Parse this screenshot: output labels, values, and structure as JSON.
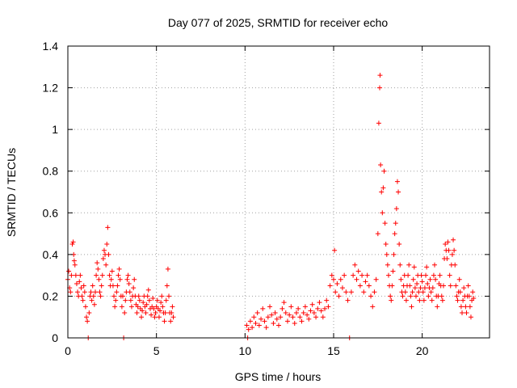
{
  "chart_data": {
    "type": "scatter",
    "title": "Day 077 of 2025, SRMTID for receiver echo",
    "xlabel": "GPS time / hours",
    "ylabel": "SRMTID / TECUs",
    "xlim": [
      0,
      23.8
    ],
    "ylim": [
      0,
      1.4
    ],
    "x_ticks": [
      0,
      5,
      10,
      15,
      20
    ],
    "y_ticks": [
      0,
      0.2,
      0.4,
      0.6,
      0.8,
      1,
      1.2,
      1.4
    ],
    "x_tick_labels": [
      "0",
      "5",
      "10",
      "15",
      "20"
    ],
    "y_tick_labels": [
      "0",
      "0.2",
      "0.4",
      "0.6",
      "0.8",
      "1",
      "1.2",
      "1.4"
    ],
    "grid": true,
    "marker": "+",
    "color": "#ff0000",
    "series": [
      {
        "name": "receiver echo",
        "points": [
          [
            0.0,
            0.28
          ],
          [
            0.05,
            0.32
          ],
          [
            0.1,
            0.24
          ],
          [
            0.15,
            0.22
          ],
          [
            0.2,
            0.3
          ],
          [
            0.25,
            0.45
          ],
          [
            0.3,
            0.46
          ],
          [
            0.33,
            0.4
          ],
          [
            0.36,
            0.37
          ],
          [
            0.4,
            0.35
          ],
          [
            0.45,
            0.3
          ],
          [
            0.5,
            0.26
          ],
          [
            0.55,
            0.22
          ],
          [
            0.6,
            0.2
          ],
          [
            0.65,
            0.27
          ],
          [
            0.7,
            0.3
          ],
          [
            0.75,
            0.24
          ],
          [
            0.8,
            0.2
          ],
          [
            0.85,
            0.18
          ],
          [
            0.9,
            0.25
          ],
          [
            0.95,
            0.22
          ],
          [
            1.0,
            0.15
          ],
          [
            1.05,
            0.1
          ],
          [
            1.1,
            0.08
          ],
          [
            1.15,
            0.0
          ],
          [
            1.2,
            0.12
          ],
          [
            1.25,
            0.2
          ],
          [
            1.3,
            0.22
          ],
          [
            1.35,
            0.18
          ],
          [
            1.4,
            0.25
          ],
          [
            1.45,
            0.2
          ],
          [
            1.5,
            0.16
          ],
          [
            1.55,
            0.22
          ],
          [
            1.6,
            0.3
          ],
          [
            1.65,
            0.36
          ],
          [
            1.7,
            0.33
          ],
          [
            1.75,
            0.28
          ],
          [
            1.8,
            0.22
          ],
          [
            1.85,
            0.2
          ],
          [
            1.9,
            0.25
          ],
          [
            1.95,
            0.3
          ],
          [
            2.0,
            0.38
          ],
          [
            2.05,
            0.42
          ],
          [
            2.1,
            0.4
          ],
          [
            2.15,
            0.35
          ],
          [
            2.2,
            0.45
          ],
          [
            2.25,
            0.53
          ],
          [
            2.3,
            0.4
          ],
          [
            2.35,
            0.3
          ],
          [
            2.4,
            0.25
          ],
          [
            2.45,
            0.28
          ],
          [
            2.5,
            0.32
          ],
          [
            2.55,
            0.25
          ],
          [
            2.6,
            0.2
          ],
          [
            2.65,
            0.15
          ],
          [
            2.7,
            0.18
          ],
          [
            2.75,
            0.22
          ],
          [
            2.8,
            0.25
          ],
          [
            2.85,
            0.3
          ],
          [
            2.9,
            0.33
          ],
          [
            2.95,
            0.28
          ],
          [
            3.0,
            0.2
          ],
          [
            3.05,
            0.15
          ],
          [
            3.1,
            0.2
          ],
          [
            3.15,
            0.0
          ],
          [
            3.2,
            0.12
          ],
          [
            3.25,
            0.18
          ],
          [
            3.3,
            0.22
          ],
          [
            3.35,
            0.28
          ],
          [
            3.4,
            0.3
          ],
          [
            3.45,
            0.26
          ],
          [
            3.5,
            0.22
          ],
          [
            3.55,
            0.18
          ],
          [
            3.6,
            0.15
          ],
          [
            3.65,
            0.2
          ],
          [
            3.7,
            0.24
          ],
          [
            3.75,
            0.28
          ],
          [
            3.8,
            0.2
          ],
          [
            3.85,
            0.16
          ],
          [
            3.9,
            0.12
          ],
          [
            3.95,
            0.15
          ],
          [
            4.0,
            0.2
          ],
          [
            4.05,
            0.18
          ],
          [
            4.1,
            0.14
          ],
          [
            4.15,
            0.1
          ],
          [
            4.2,
            0.13
          ],
          [
            4.25,
            0.17
          ],
          [
            4.3,
            0.2
          ],
          [
            4.35,
            0.15
          ],
          [
            4.4,
            0.12
          ],
          [
            4.45,
            0.16
          ],
          [
            4.5,
            0.2
          ],
          [
            4.55,
            0.23
          ],
          [
            4.6,
            0.18
          ],
          [
            4.65,
            0.14
          ],
          [
            4.7,
            0.11
          ],
          [
            4.75,
            0.15
          ],
          [
            4.8,
            0.19
          ],
          [
            4.85,
            0.14
          ],
          [
            4.9,
            0.1
          ],
          [
            4.95,
            0.12
          ],
          [
            5.0,
            0.15
          ],
          [
            5.05,
            0.18
          ],
          [
            5.1,
            0.14
          ],
          [
            5.15,
            0.1
          ],
          [
            5.2,
            0.13
          ],
          [
            5.25,
            0.17
          ],
          [
            5.3,
            0.2
          ],
          [
            5.35,
            0.15
          ],
          [
            5.4,
            0.12
          ],
          [
            5.45,
            0.08
          ],
          [
            5.5,
            0.12
          ],
          [
            5.55,
            0.18
          ],
          [
            5.6,
            0.25
          ],
          [
            5.65,
            0.33
          ],
          [
            5.7,
            0.2
          ],
          [
            5.75,
            0.12
          ],
          [
            5.8,
            0.08
          ],
          [
            5.85,
            0.12
          ],
          [
            5.9,
            0.15
          ],
          [
            5.95,
            0.1
          ],
          [
            10.1,
            0.06
          ],
          [
            10.15,
            0.0
          ],
          [
            10.2,
            0.04
          ],
          [
            10.3,
            0.08
          ],
          [
            10.4,
            0.05
          ],
          [
            10.5,
            0.1
          ],
          [
            10.6,
            0.07
          ],
          [
            10.7,
            0.12
          ],
          [
            10.8,
            0.06
          ],
          [
            10.9,
            0.09
          ],
          [
            11.0,
            0.14
          ],
          [
            11.1,
            0.08
          ],
          [
            11.2,
            0.05
          ],
          [
            11.3,
            0.1
          ],
          [
            11.4,
            0.15
          ],
          [
            11.5,
            0.11
          ],
          [
            11.6,
            0.07
          ],
          [
            11.7,
            0.12
          ],
          [
            11.8,
            0.09
          ],
          [
            11.9,
            0.06
          ],
          [
            12.0,
            0.1
          ],
          [
            12.1,
            0.14
          ],
          [
            12.2,
            0.17
          ],
          [
            12.3,
            0.12
          ],
          [
            12.4,
            0.08
          ],
          [
            12.5,
            0.11
          ],
          [
            12.6,
            0.15
          ],
          [
            12.7,
            0.1
          ],
          [
            12.8,
            0.07
          ],
          [
            12.9,
            0.12
          ],
          [
            13.0,
            0.14
          ],
          [
            13.1,
            0.1
          ],
          [
            13.2,
            0.08
          ],
          [
            13.3,
            0.12
          ],
          [
            13.4,
            0.15
          ],
          [
            13.5,
            0.11
          ],
          [
            13.6,
            0.09
          ],
          [
            13.7,
            0.13
          ],
          [
            13.8,
            0.16
          ],
          [
            13.9,
            0.12
          ],
          [
            14.0,
            0.1
          ],
          [
            14.1,
            0.14
          ],
          [
            14.2,
            0.17
          ],
          [
            14.3,
            0.13
          ],
          [
            14.4,
            0.1
          ],
          [
            14.5,
            0.14
          ],
          [
            14.6,
            0.18
          ],
          [
            14.7,
            0.15
          ],
          [
            14.8,
            0.25
          ],
          [
            14.9,
            0.3
          ],
          [
            15.0,
            0.28
          ],
          [
            15.05,
            0.42
          ],
          [
            15.1,
            0.22
          ],
          [
            15.2,
            0.26
          ],
          [
            15.3,
            0.2
          ],
          [
            15.4,
            0.28
          ],
          [
            15.5,
            0.24
          ],
          [
            15.6,
            0.3
          ],
          [
            15.7,
            0.22
          ],
          [
            15.8,
            0.18
          ],
          [
            15.9,
            0.0
          ],
          [
            16.0,
            0.22
          ],
          [
            16.1,
            0.3
          ],
          [
            16.2,
            0.35
          ],
          [
            16.3,
            0.28
          ],
          [
            16.4,
            0.32
          ],
          [
            16.5,
            0.25
          ],
          [
            16.6,
            0.3
          ],
          [
            16.7,
            0.22
          ],
          [
            16.8,
            0.27
          ],
          [
            16.9,
            0.3
          ],
          [
            17.0,
            0.25
          ],
          [
            17.1,
            0.2
          ],
          [
            17.2,
            0.15
          ],
          [
            17.3,
            0.22
          ],
          [
            17.4,
            0.28
          ],
          [
            17.5,
            0.5
          ],
          [
            17.55,
            1.03
          ],
          [
            17.6,
            1.2
          ],
          [
            17.62,
            1.26
          ],
          [
            17.65,
            0.83
          ],
          [
            17.7,
            0.7
          ],
          [
            17.75,
            0.6
          ],
          [
            17.8,
            0.72
          ],
          [
            17.85,
            0.8
          ],
          [
            17.9,
            0.55
          ],
          [
            17.95,
            0.45
          ],
          [
            18.0,
            0.4
          ],
          [
            18.05,
            0.35
          ],
          [
            18.1,
            0.3
          ],
          [
            18.15,
            0.25
          ],
          [
            18.2,
            0.2
          ],
          [
            18.25,
            0.18
          ],
          [
            18.3,
            0.25
          ],
          [
            18.35,
            0.32
          ],
          [
            18.4,
            0.4
          ],
          [
            18.45,
            0.5
          ],
          [
            18.5,
            0.55
          ],
          [
            18.55,
            0.62
          ],
          [
            18.6,
            0.75
          ],
          [
            18.65,
            0.7
          ],
          [
            18.7,
            0.45
          ],
          [
            18.75,
            0.35
          ],
          [
            18.8,
            0.28
          ],
          [
            18.85,
            0.22
          ],
          [
            18.9,
            0.2
          ],
          [
            18.95,
            0.25
          ],
          [
            19.0,
            0.3
          ],
          [
            19.05,
            0.22
          ],
          [
            19.1,
            0.18
          ],
          [
            19.15,
            0.25
          ],
          [
            19.2,
            0.3
          ],
          [
            19.25,
            0.35
          ],
          [
            19.3,
            0.25
          ],
          [
            19.35,
            0.2
          ],
          [
            19.4,
            0.15
          ],
          [
            19.45,
            0.22
          ],
          [
            19.5,
            0.28
          ],
          [
            19.55,
            0.34
          ],
          [
            19.6,
            0.24
          ],
          [
            19.65,
            0.2
          ],
          [
            19.7,
            0.26
          ],
          [
            19.75,
            0.3
          ],
          [
            19.8,
            0.22
          ],
          [
            19.85,
            0.18
          ],
          [
            19.9,
            0.24
          ],
          [
            19.95,
            0.3
          ],
          [
            20.0,
            0.27
          ],
          [
            20.05,
            0.22
          ],
          [
            20.1,
            0.18
          ],
          [
            20.15,
            0.24
          ],
          [
            20.2,
            0.3
          ],
          [
            20.25,
            0.34
          ],
          [
            20.3,
            0.26
          ],
          [
            20.35,
            0.2
          ],
          [
            20.4,
            0.24
          ],
          [
            20.45,
            0.28
          ],
          [
            20.5,
            0.22
          ],
          [
            20.55,
            0.18
          ],
          [
            20.6,
            0.24
          ],
          [
            20.65,
            0.3
          ],
          [
            20.7,
            0.35
          ],
          [
            20.75,
            0.28
          ],
          [
            20.8,
            0.2
          ],
          [
            20.85,
            0.15
          ],
          [
            20.9,
            0.2
          ],
          [
            20.95,
            0.26
          ],
          [
            21.0,
            0.3
          ],
          [
            21.05,
            0.25
          ],
          [
            21.1,
            0.2
          ],
          [
            21.15,
            0.18
          ],
          [
            21.2,
            0.25
          ],
          [
            21.25,
            0.38
          ],
          [
            21.3,
            0.45
          ],
          [
            21.35,
            0.42
          ],
          [
            21.4,
            0.38
          ],
          [
            21.45,
            0.46
          ],
          [
            21.5,
            0.42
          ],
          [
            21.55,
            0.3
          ],
          [
            21.6,
            0.25
          ],
          [
            21.65,
            0.35
          ],
          [
            21.7,
            0.4
          ],
          [
            21.75,
            0.47
          ],
          [
            21.8,
            0.42
          ],
          [
            21.85,
            0.35
          ],
          [
            21.9,
            0.25
          ],
          [
            21.95,
            0.2
          ],
          [
            22.0,
            0.18
          ],
          [
            22.05,
            0.22
          ],
          [
            22.1,
            0.28
          ],
          [
            22.15,
            0.22
          ],
          [
            22.2,
            0.15
          ],
          [
            22.25,
            0.12
          ],
          [
            22.3,
            0.18
          ],
          [
            22.35,
            0.24
          ],
          [
            22.4,
            0.2
          ],
          [
            22.45,
            0.15
          ],
          [
            22.5,
            0.12
          ],
          [
            22.55,
            0.2
          ],
          [
            22.6,
            0.25
          ],
          [
            22.65,
            0.2
          ],
          [
            22.7,
            0.15
          ],
          [
            22.75,
            0.1
          ],
          [
            22.8,
            0.18
          ],
          [
            22.85,
            0.22
          ],
          [
            22.9,
            0.19
          ]
        ]
      }
    ]
  }
}
